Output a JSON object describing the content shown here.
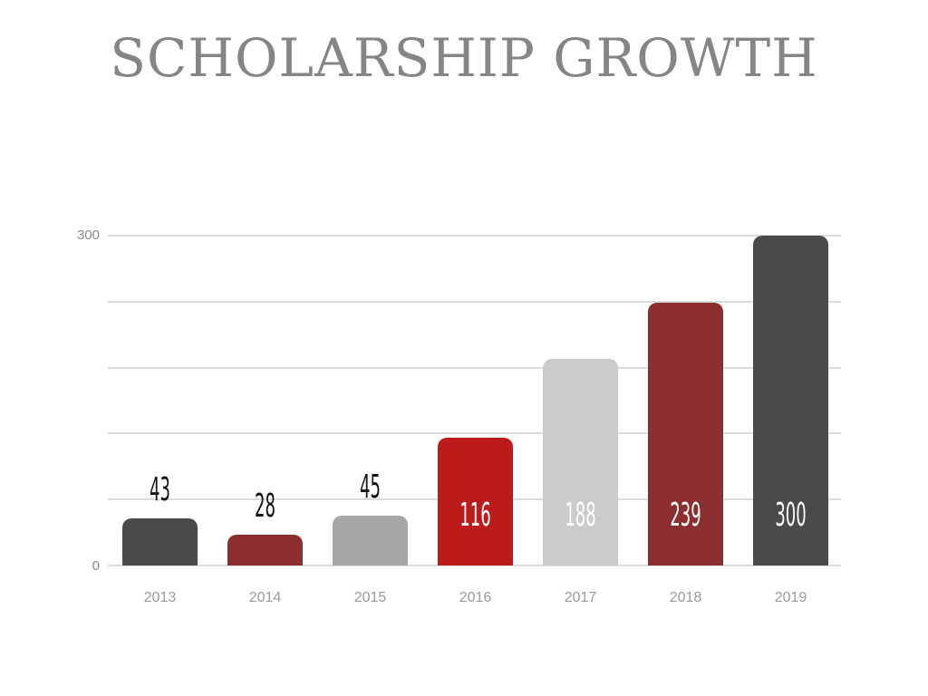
{
  "chart_data": {
    "type": "bar",
    "title": "SCHOLARSHIP GROWTH",
    "xlabel": "",
    "ylabel": "",
    "categories": [
      "2013",
      "2014",
      "2015",
      "2016",
      "2017",
      "2018",
      "2019"
    ],
    "values": [
      43,
      28,
      45,
      116,
      188,
      239,
      300
    ],
    "ylim": [
      0,
      300
    ],
    "yticks": [
      "0",
      "300"
    ],
    "grid": true,
    "legend": null,
    "bar_colors": [
      "#4a4a4a",
      "#8b2e2f",
      "#a6a6a6",
      "#bd1a1a",
      "#cbcbcb",
      "#8b2e2f",
      "#4a4a4a"
    ],
    "data_labels": [
      "43",
      "28",
      "45",
      "116",
      "188",
      "239",
      "300"
    ]
  }
}
